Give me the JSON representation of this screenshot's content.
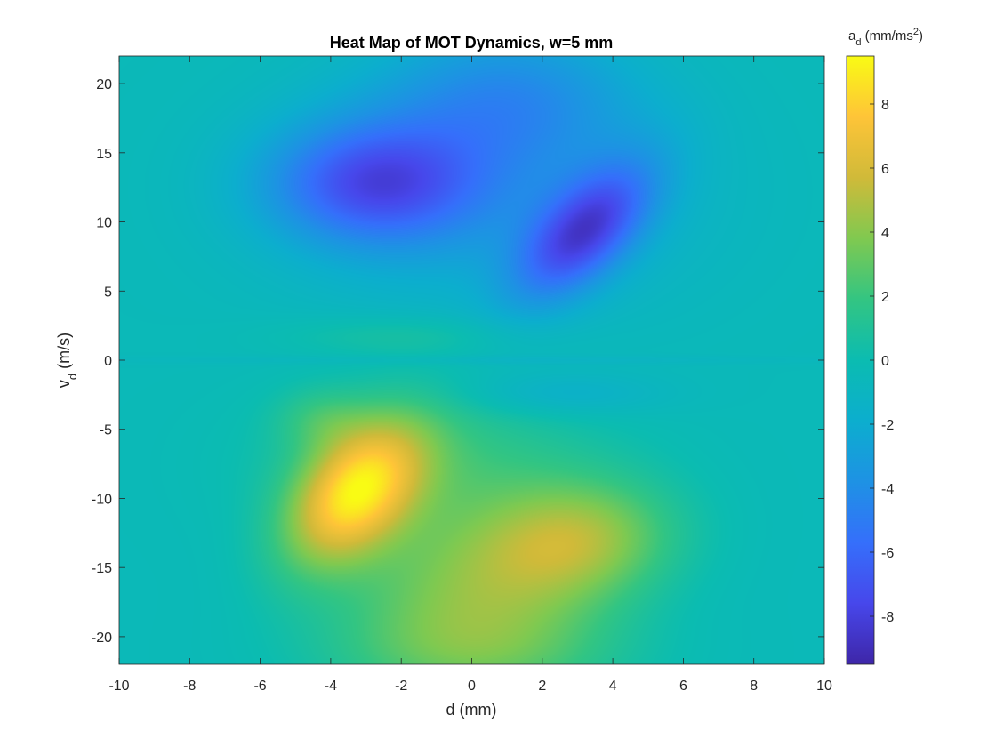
{
  "chart_data": {
    "type": "heatmap",
    "title": "Heat Map of MOT Dynamics, w=5 mm",
    "xlabel": "d (mm)",
    "ylabel_main": "v",
    "ylabel_sub": "d",
    "ylabel_unit": " (m/s)",
    "colorbar_label_main": "a",
    "colorbar_label_sub": "d",
    "colorbar_label_unit_pre": " (mm/ms",
    "colorbar_label_sup": "2",
    "colorbar_label_unit_post": ")",
    "xlim": [
      -10,
      10
    ],
    "ylim": [
      22,
      -22
    ],
    "y_reversed": true,
    "clim": [
      -9.5,
      9.5
    ],
    "colormap": "parula",
    "xticks": [
      -10,
      -8,
      -6,
      -4,
      -2,
      0,
      2,
      4,
      6,
      8,
      10
    ],
    "xtick_labels": [
      "-10",
      "-8",
      "-6",
      "-4",
      "-2",
      "0",
      "2",
      "4",
      "6",
      "8",
      "10"
    ],
    "yticks": [
      -20,
      -15,
      -10,
      -5,
      0,
      5,
      10,
      15,
      20
    ],
    "ytick_labels": [
      "-20",
      "-15",
      "-10",
      "-5",
      "0",
      "5",
      "10",
      "15",
      "20"
    ],
    "cticks": [
      -8,
      -6,
      -4,
      -2,
      0,
      2,
      4,
      6,
      8
    ],
    "ctick_labels": [
      "-8",
      "-6",
      "-4",
      "-2",
      "0",
      "2",
      "4",
      "6",
      "8"
    ],
    "features": [
      {
        "d": -3.2,
        "v": -10.0,
        "value": 9.3
      },
      {
        "d": 3.0,
        "v": -13.0,
        "value": 7.0
      },
      {
        "d": 0.0,
        "v": -19.0,
        "value": 6.5
      },
      {
        "d": -3.0,
        "v": 13.0,
        "value": -7.3
      },
      {
        "d": 3.2,
        "v": 9.5,
        "value": -8.8
      },
      {
        "d": 1.5,
        "v": 21.0,
        "value": -4.5
      }
    ],
    "grid": false,
    "legend": "colorbar-right"
  }
}
